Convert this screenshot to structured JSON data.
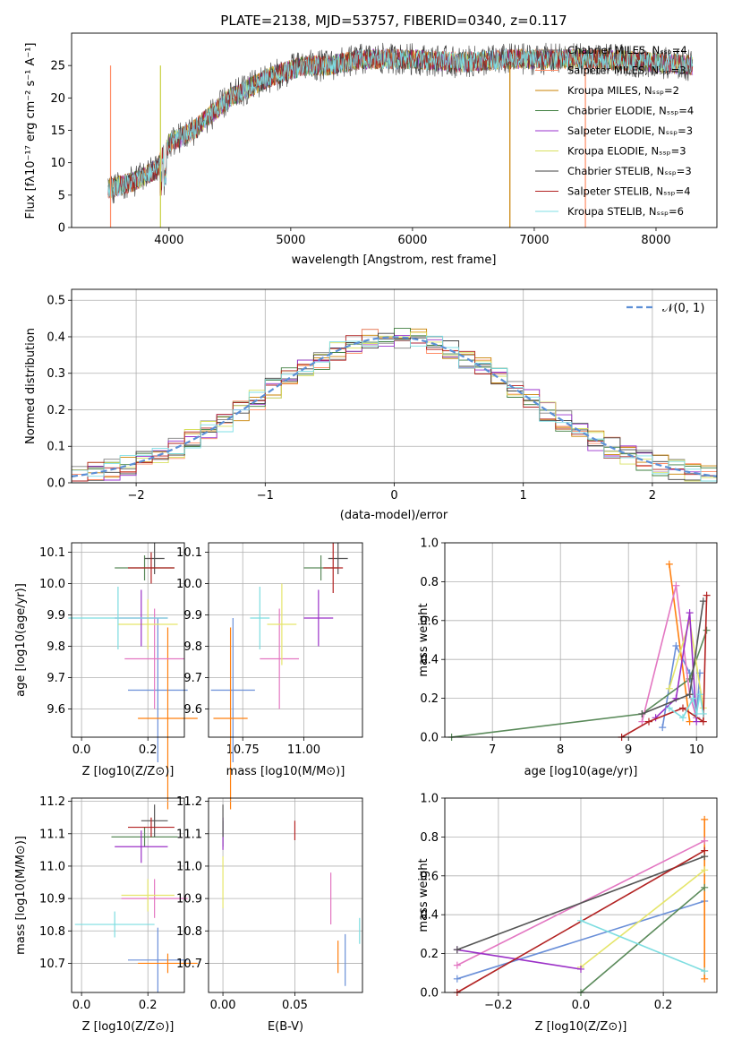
{
  "page_title": "PLATE=2138, MJD=53757, FIBERID=0340, z=0.117",
  "colors": {
    "Chabrier MILES": "#808080",
    "Salpeter MILES": "#ff8c66",
    "Kroupa MILES": "#c88000",
    "Chabrier ELODIE": "#3f7f3f",
    "Salpeter ELODIE": "#9932cc",
    "Kroupa ELODIE": "#d8e060",
    "Chabrier STELIB": "#404040",
    "Salpeter STELIB": "#b22222",
    "Kroupa STELIB": "#7fdfe6",
    "gaussian": "#5b8fd6"
  },
  "panel_colors": [
    "#6a8fd8",
    "#ff7f0e",
    "#5a8a5a",
    "#e377c2",
    "#e5e56a",
    "#9b30c7",
    "#555555",
    "#b22222",
    "#7ddde0"
  ],
  "chart_data": [
    {
      "type": "line",
      "title": "PLATE=2138, MJD=53757, FIBERID=0340, z=0.117",
      "xlabel": "wavelength [Angstrom, rest frame]",
      "ylabel": "Flux [fλ10⁻¹⁷ erg cm⁻² s⁻¹ A⁻¹]",
      "xlim": [
        3200,
        8500
      ],
      "ylim": [
        0,
        30
      ],
      "xticks": [
        "4000",
        "5000",
        "6000",
        "7000",
        "8000"
      ],
      "yticks": [
        "0",
        "5",
        "10",
        "15",
        "20",
        "25"
      ],
      "legend_loc": "upper right",
      "series": [
        {
          "name": "Chabrier MILES, N_SSP=4"
        },
        {
          "name": "Salpeter MILES, N_SSP=3"
        },
        {
          "name": "Kroupa MILES, N_SSP=2"
        },
        {
          "name": "Chabrier ELODIE, N_SSP=4"
        },
        {
          "name": "Salpeter ELODIE, N_SSP=3"
        },
        {
          "name": "Kroupa ELODIE, N_SSP=3"
        },
        {
          "name": "Chabrier STELIB, N_SSP=3"
        },
        {
          "name": "Salpeter STELIB, N_SSP=4"
        },
        {
          "name": "Kroupa STELIB, N_SSP=6"
        }
      ],
      "continuum": {
        "x": [
          3500,
          3700,
          3900,
          4000,
          4200,
          4500,
          4800,
          5100,
          5300,
          5600,
          6000,
          6400,
          6800,
          7200,
          7500,
          8000,
          8300
        ],
        "y": [
          6,
          7,
          9,
          13,
          15,
          20,
          23,
          25,
          25,
          26,
          26,
          25.5,
          26,
          26,
          26,
          25.5,
          25
        ]
      }
    },
    {
      "type": "line",
      "xlabel": "(data-model)/error",
      "ylabel": "Normed distribution",
      "xlim": [
        -2.5,
        2.5
      ],
      "ylim": [
        0,
        0.53
      ],
      "xticks": [
        "−2",
        "−1",
        "0",
        "1",
        "2"
      ],
      "yticks": [
        "0.0",
        "0.1",
        "0.2",
        "0.3",
        "0.4",
        "0.5"
      ],
      "legend": "𝒩(0, 1)",
      "gaussian": {
        "mu": 0,
        "sigma": 1
      }
    },
    {
      "type": "scatter",
      "xlabel": "Z [log10(Z/Z⊙)]",
      "ylabel": "age [log10(age/yr)]",
      "xlim": [
        -0.03,
        0.31
      ],
      "ylim": [
        9.51,
        10.13
      ],
      "xticks": [
        "0.0",
        "0.2"
      ],
      "yticks": [
        "9.6",
        "9.7",
        "9.8",
        "9.9",
        "10.0",
        "10.1"
      ],
      "points": [
        {
          "x": 0.23,
          "y": 9.66,
          "xerr": 0.09,
          "yerr": 0.23
        },
        {
          "x": 0.26,
          "y": 9.57,
          "xerr": 0.09,
          "yerr": 0.29
        },
        {
          "x": 0.19,
          "y": 10.05,
          "xerr": 0.09,
          "yerr": 0.04
        },
        {
          "x": 0.22,
          "y": 9.76,
          "xerr": 0.09,
          "yerr": 0.16
        },
        {
          "x": 0.2,
          "y": 9.87,
          "xerr": 0.09,
          "yerr": 0.08
        },
        {
          "x": 0.18,
          "y": 9.89,
          "xerr": 0.08,
          "yerr": 0.09
        },
        {
          "x": 0.22,
          "y": 10.08,
          "xerr": 0.03,
          "yerr": 0.05
        },
        {
          "x": 0.21,
          "y": 10.05,
          "xerr": 0.07,
          "yerr": 0.05
        },
        {
          "x": 0.11,
          "y": 9.89,
          "xerr": 0.15,
          "yerr": 0.1
        }
      ]
    },
    {
      "type": "scatter",
      "xlabel": "mass [log10(M/M⊙)]",
      "ylabel": "",
      "xlim": [
        10.61,
        11.24
      ],
      "ylim": [
        9.51,
        10.13
      ],
      "xticks": [
        "10.75",
        "11.00"
      ],
      "yticks": [
        "9.6",
        "9.7",
        "9.8",
        "9.9",
        "10.0",
        "10.1"
      ],
      "points": [
        {
          "x": 10.71,
          "y": 9.66,
          "xerr": 0.09,
          "yerr": 0.23
        },
        {
          "x": 10.7,
          "y": 9.57,
          "xerr": 0.07,
          "yerr": 0.29
        },
        {
          "x": 11.07,
          "y": 10.05,
          "xerr": 0.07,
          "yerr": 0.04
        },
        {
          "x": 10.9,
          "y": 9.76,
          "xerr": 0.08,
          "yerr": 0.16
        },
        {
          "x": 10.91,
          "y": 9.87,
          "xerr": 0.06,
          "yerr": 0.13
        },
        {
          "x": 11.06,
          "y": 9.89,
          "xerr": 0.06,
          "yerr": 0.09
        },
        {
          "x": 11.14,
          "y": 10.08,
          "xerr": 0.04,
          "yerr": 0.05
        },
        {
          "x": 11.12,
          "y": 10.05,
          "xerr": 0.04,
          "yerr": 0.08
        },
        {
          "x": 10.82,
          "y": 9.89,
          "xerr": 0.04,
          "yerr": 0.1
        }
      ]
    },
    {
      "type": "line",
      "xlabel": "age [log10(age/yr)]",
      "ylabel": "mass weight",
      "xlim": [
        6.3,
        10.3
      ],
      "ylim": [
        0,
        1
      ],
      "xticks": [
        "7",
        "8",
        "9",
        "10"
      ],
      "yticks": [
        "0.0",
        "0.2",
        "0.4",
        "0.6",
        "0.8",
        "1.0"
      ],
      "series": [
        {
          "x": [
            9.5,
            9.7,
            9.9,
            10.0,
            10.05
          ],
          "y": [
            0.05,
            0.47,
            0.33,
            0.1,
            0.33
          ]
        },
        {
          "x": [
            9.6,
            9.9
          ],
          "y": [
            0.89,
            0.08
          ]
        },
        {
          "x": [
            6.4,
            9.2,
            9.9,
            10.15
          ],
          "y": [
            0.0,
            0.12,
            0.3,
            0.55
          ]
        },
        {
          "x": [
            9.2,
            9.7,
            9.9,
            10.0
          ],
          "y": [
            0.08,
            0.78,
            0.22,
            0.1
          ]
        },
        {
          "x": [
            9.6,
            9.9,
            10.1
          ],
          "y": [
            0.25,
            0.6,
            0.15
          ]
        },
        {
          "x": [
            9.4,
            9.7,
            9.9,
            10.0
          ],
          "y": [
            0.1,
            0.2,
            0.64,
            0.08
          ]
        },
        {
          "x": [
            9.2,
            9.9,
            10.1
          ],
          "y": [
            0.12,
            0.22,
            0.7
          ]
        },
        {
          "x": [
            8.9,
            9.3,
            9.8,
            10.1,
            10.15
          ],
          "y": [
            0.0,
            0.08,
            0.15,
            0.08,
            0.73
          ]
        },
        {
          "x": [
            9.6,
            9.8,
            9.95,
            10.0,
            10.05,
            10.1
          ],
          "y": [
            0.15,
            0.1,
            0.2,
            0.12,
            0.22,
            0.12
          ]
        }
      ]
    },
    {
      "type": "scatter",
      "xlabel": "Z [log10(Z/Z⊙)]",
      "ylabel": "mass [log10(M/M⊙)]",
      "xlim": [
        -0.03,
        0.31
      ],
      "ylim": [
        10.61,
        11.21
      ],
      "xticks": [
        "0.0",
        "0.2"
      ],
      "yticks": [
        "10.7",
        "10.8",
        "10.9",
        "11.0",
        "11.1",
        "11.2"
      ],
      "points": [
        {
          "x": 0.23,
          "y": 10.71,
          "xerr": 0.09,
          "yerr": 0.1
        },
        {
          "x": 0.26,
          "y": 10.7,
          "xerr": 0.09,
          "yerr": 0.03
        },
        {
          "x": 0.19,
          "y": 11.09,
          "xerr": 0.1,
          "yerr": 0.03
        },
        {
          "x": 0.22,
          "y": 10.9,
          "xerr": 0.1,
          "yerr": 0.06
        },
        {
          "x": 0.2,
          "y": 10.91,
          "xerr": 0.08,
          "yerr": 0.05
        },
        {
          "x": 0.18,
          "y": 11.06,
          "xerr": 0.08,
          "yerr": 0.05
        },
        {
          "x": 0.22,
          "y": 11.14,
          "xerr": 0.04,
          "yerr": 0.05
        },
        {
          "x": 0.21,
          "y": 11.12,
          "xerr": 0.07,
          "yerr": 0.03
        },
        {
          "x": 0.1,
          "y": 10.82,
          "xerr": 0.12,
          "yerr": 0.04
        }
      ]
    },
    {
      "type": "scatter",
      "xlabel": "E(B-V)",
      "ylabel": "",
      "xlim": [
        -0.01,
        0.097
      ],
      "ylim": [
        10.61,
        11.21
      ],
      "xticks": [
        "0.00",
        "0.05"
      ],
      "yticks": [
        "10.7",
        "10.8",
        "10.9",
        "11.0",
        "11.1",
        "11.2"
      ],
      "points": [
        {
          "x": 0.085,
          "y": 10.71,
          "xerr": 0,
          "yerr": 0.08
        },
        {
          "x": 0.08,
          "y": 10.72,
          "xerr": 0,
          "yerr": 0.05
        },
        {
          "x": 0.0,
          "y": 11.1,
          "xerr": 0,
          "yerr": 0.04
        },
        {
          "x": 0.075,
          "y": 10.9,
          "xerr": 0,
          "yerr": 0.08
        },
        {
          "x": 0.0,
          "y": 10.95,
          "xerr": 0,
          "yerr": 0.08
        },
        {
          "x": 0.0,
          "y": 11.1,
          "xerr": 0,
          "yerr": 0.05
        },
        {
          "x": 0.0,
          "y": 11.14,
          "xerr": 0,
          "yerr": 0.05
        },
        {
          "x": 0.05,
          "y": 11.11,
          "xerr": 0,
          "yerr": 0.03
        },
        {
          "x": 0.095,
          "y": 10.8,
          "xerr": 0,
          "yerr": 0.04
        }
      ]
    },
    {
      "type": "line",
      "xlabel": "Z [log10(Z/Z⊙)]",
      "ylabel": "mass weight",
      "xlim": [
        -0.33,
        0.33
      ],
      "ylim": [
        0,
        1
      ],
      "xticks": [
        "−0.2",
        "0.0",
        "0.2"
      ],
      "yticks": [
        "0.0",
        "0.2",
        "0.4",
        "0.6",
        "0.8",
        "1.0"
      ],
      "series": [
        {
          "x": [
            -0.3,
            0.3
          ],
          "y": [
            0.07,
            0.47
          ]
        },
        {
          "x": [
            0.3,
            0.3
          ],
          "y": [
            0.07,
            0.89
          ]
        },
        {
          "x": [
            0.0,
            0.3
          ],
          "y": [
            0.0,
            0.54
          ]
        },
        {
          "x": [
            -0.3,
            0.3
          ],
          "y": [
            0.14,
            0.78
          ]
        },
        {
          "x": [
            0.0,
            0.3
          ],
          "y": [
            0.13,
            0.63
          ]
        },
        {
          "x": [
            -0.3,
            0.0
          ],
          "y": [
            0.22,
            0.12
          ]
        },
        {
          "x": [
            -0.3,
            0.3
          ],
          "y": [
            0.22,
            0.7
          ]
        },
        {
          "x": [
            -0.3,
            0.3
          ],
          "y": [
            0.0,
            0.73
          ]
        },
        {
          "x": [
            0.0,
            0.3
          ],
          "y": [
            0.37,
            0.11
          ]
        }
      ]
    }
  ]
}
